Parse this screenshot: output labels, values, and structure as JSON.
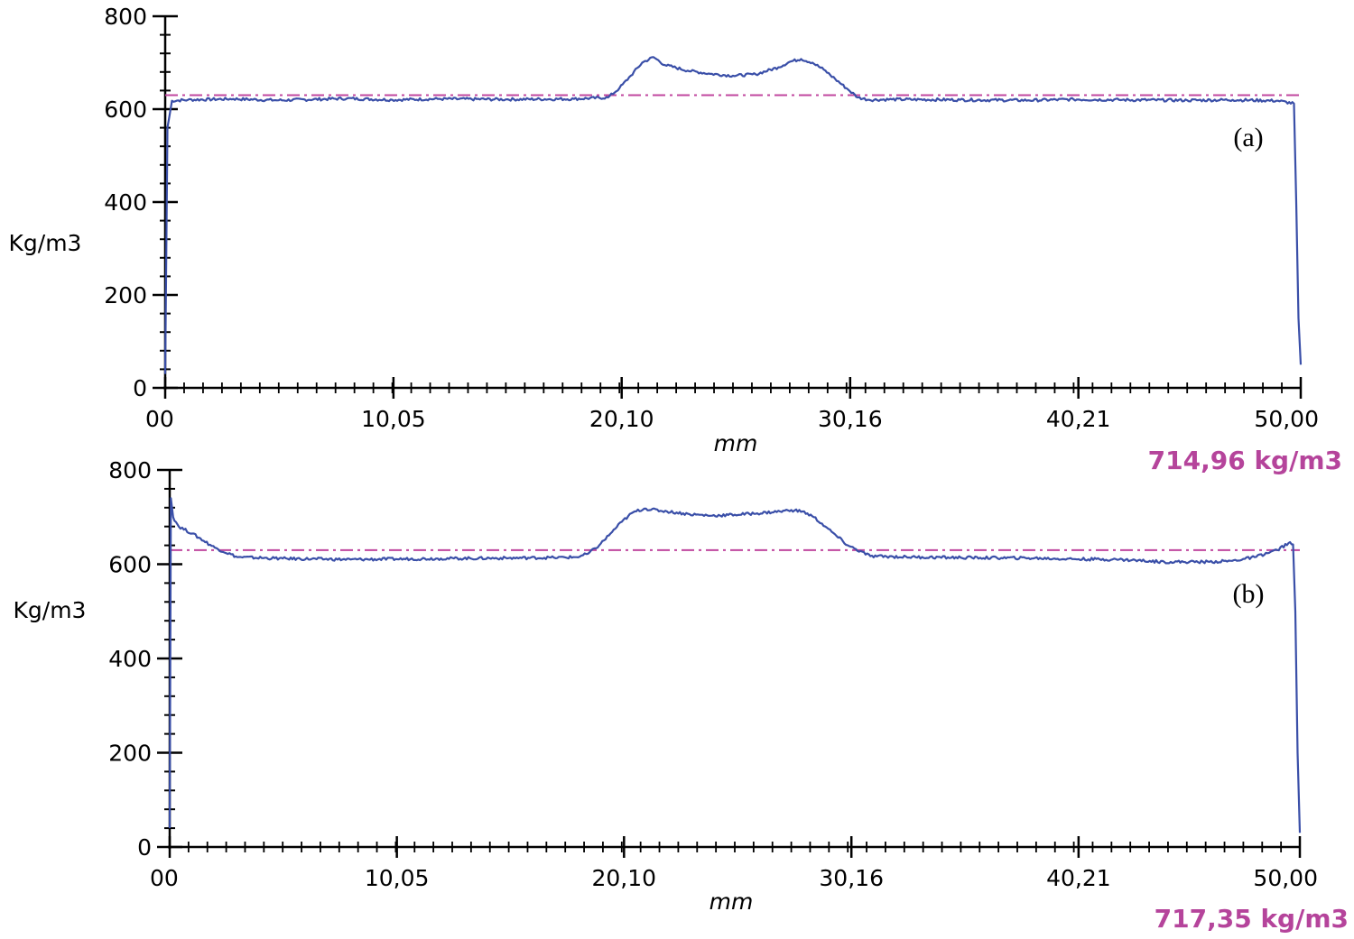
{
  "chart_data": [
    {
      "type": "line",
      "panel_label": "(a)",
      "ylabel": "Kg/m3",
      "xlabel": "mm",
      "x_tick_labels": [
        "00",
        "10,05",
        "20,10",
        "30,16",
        "40,21",
        "50,00"
      ],
      "x_ticks": [
        0,
        10.05,
        20.1,
        30.16,
        40.21,
        50.0
      ],
      "y_tick_labels": [
        "0",
        "200",
        "400",
        "600",
        "800"
      ],
      "y_ticks": [
        0,
        200,
        400,
        600,
        800
      ],
      "xlim": [
        0,
        50
      ],
      "ylim": [
        0,
        800
      ],
      "mean_line": 630,
      "max_value_label": "714,96 kg/m3",
      "series": [
        {
          "color": "#3a4fa8",
          "x": [
            0.0,
            0.1,
            0.3,
            1,
            3,
            5,
            8,
            10,
            12,
            15,
            18,
            19.5,
            20,
            20.5,
            21,
            21.5,
            22,
            23,
            24,
            25,
            26,
            27,
            27.5,
            28,
            28.5,
            29,
            29.5,
            30,
            30.5,
            31,
            32,
            35,
            38,
            40,
            42,
            45,
            47,
            49,
            49.7,
            49.8,
            49.9,
            50.0
          ],
          "y": [
            30,
            560,
            618,
            620,
            622,
            619,
            623,
            620,
            622,
            621,
            622,
            625,
            645,
            672,
            700,
            712,
            695,
            683,
            676,
            672,
            675,
            690,
            702,
            708,
            700,
            685,
            665,
            645,
            625,
            620,
            621,
            620,
            619,
            621,
            620,
            619,
            620,
            618,
            612,
            400,
            150,
            50
          ]
        }
      ]
    },
    {
      "type": "line",
      "panel_label": "(b)",
      "ylabel": "Kg/m3",
      "xlabel": "mm",
      "x_tick_labels": [
        "00",
        "10,05",
        "20,10",
        "30,16",
        "40,21",
        "50,00"
      ],
      "x_ticks": [
        0,
        10.05,
        20.1,
        30.16,
        40.21,
        50.0
      ],
      "y_tick_labels": [
        "0",
        "200",
        "400",
        "600",
        "800"
      ],
      "y_ticks": [
        0,
        200,
        400,
        600,
        800
      ],
      "xlim": [
        0,
        50
      ],
      "ylim": [
        0,
        800
      ],
      "mean_line": 630,
      "max_value_label": "717,35 kg/m3",
      "series": [
        {
          "color": "#3a4fa8",
          "x": [
            0.0,
            0.05,
            0.15,
            0.4,
            1,
            2,
            3,
            5,
            8,
            10,
            12,
            15,
            17,
            18,
            18.5,
            19,
            19.5,
            20,
            20.5,
            21,
            22,
            23,
            24,
            25,
            26,
            27,
            27.5,
            28,
            28.5,
            29,
            29.5,
            30,
            31,
            33,
            35,
            38,
            40,
            42,
            44,
            46,
            47,
            48,
            49,
            49.5,
            49.7,
            49.8,
            49.9,
            50.0
          ],
          "y": [
            40,
            740,
            700,
            680,
            665,
            635,
            615,
            612,
            610,
            611,
            612,
            613,
            614,
            615,
            622,
            640,
            665,
            690,
            710,
            718,
            712,
            706,
            703,
            705,
            708,
            712,
            715,
            712,
            700,
            680,
            660,
            640,
            617,
            615,
            614,
            613,
            611,
            610,
            605,
            605,
            607,
            615,
            630,
            645,
            642,
            500,
            200,
            30
          ]
        }
      ]
    }
  ]
}
